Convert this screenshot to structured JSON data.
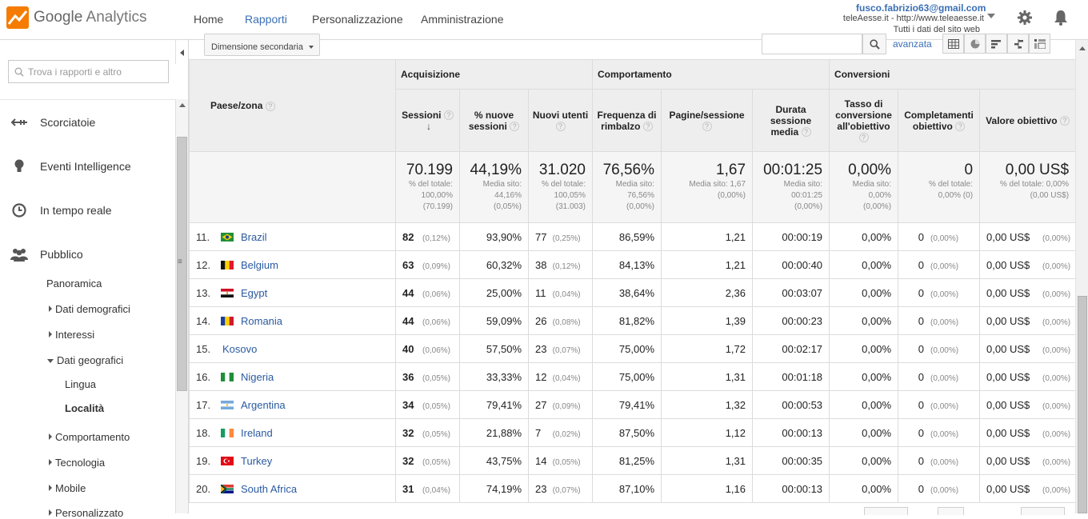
{
  "app": {
    "logo_brand": "Google",
    "logo_product": "Analytics",
    "brand_color": "#f57c00",
    "accent_color": "#3a6fb4"
  },
  "nav": {
    "tabs": [
      {
        "label": "Home",
        "active": false
      },
      {
        "label": "Rapporti",
        "active": true
      },
      {
        "label": "Personalizzazione",
        "active": false
      },
      {
        "label": "Amministrazione",
        "active": false
      }
    ]
  },
  "account": {
    "email": "fusco.fabrizio63@gmail.com",
    "property": "teleAesse.it - http://www.teleaesse.it",
    "view": "Tutti i dati del sito web"
  },
  "icons": {
    "settings": "gear-icon",
    "notifications": "bell-icon",
    "search": "search-icon"
  },
  "sidebar": {
    "search_placeholder": "Trova i rapporti e altro",
    "items": [
      {
        "label": "Scorciatoie",
        "icon": "shortcut-icon"
      },
      {
        "label": "Eventi Intelligence",
        "icon": "lightbulb-icon"
      },
      {
        "label": "In tempo reale",
        "icon": "clock-icon"
      },
      {
        "label": "Pubblico",
        "icon": "people-icon"
      }
    ],
    "pubblico_sub": [
      {
        "label": "Panoramica",
        "expander": "none"
      },
      {
        "label": "Dati demografici",
        "expander": "collapsed"
      },
      {
        "label": "Interessi",
        "expander": "collapsed"
      },
      {
        "label": "Dati geografici",
        "expander": "expanded"
      },
      {
        "label": "Lingua",
        "expander": "none"
      },
      {
        "label": "Località",
        "expander": "none",
        "selected": true
      },
      {
        "label": "Comportamento",
        "expander": "collapsed"
      },
      {
        "label": "Tecnologia",
        "expander": "collapsed"
      },
      {
        "label": "Mobile",
        "expander": "collapsed"
      },
      {
        "label": "Personalizzato",
        "expander": "collapsed"
      }
    ]
  },
  "toolbar": {
    "secondary_dimension": "Dimensione secondaria",
    "advanced_link": "avanzata"
  },
  "table": {
    "dimension_header": "Paese/zona",
    "groups": [
      "Acquisizione",
      "Comportamento",
      "Conversioni"
    ],
    "columns": [
      "Sessioni",
      "% nuove sessioni",
      "Nuovi utenti",
      "Frequenza di rimbalzo",
      "Pagine/sessione",
      "Durata sessione media",
      "Tasso di conversione all'obiettivo",
      "Completamenti obiettivo",
      "Valore obiettivo"
    ],
    "totals": [
      {
        "value": "70.199",
        "sub": "% del totale:\n100,00%\n(70.199)"
      },
      {
        "value": "44,19%",
        "sub": "Media sito:\n44,16%\n(0,05%)"
      },
      {
        "value": "31.020",
        "sub": "% del totale:\n100,05%\n(31.003)"
      },
      {
        "value": "76,56%",
        "sub": "Media sito:\n76,56%\n(0,00%)"
      },
      {
        "value": "1,67",
        "sub": "Media sito: 1,67\n(0,00%)"
      },
      {
        "value": "00:01:25",
        "sub": "Media sito:\n00:01:25\n(0,00%)"
      },
      {
        "value": "0,00%",
        "sub": "Media sito:\n0,00%\n(0,00%)"
      },
      {
        "value": "0",
        "sub": "% del totale:\n0,00% (0)"
      },
      {
        "value": "0,00 US$",
        "sub": "% del totale: 0,00%\n(0,00 US$)"
      }
    ],
    "rows": [
      {
        "rank": "11.",
        "country": "Brazil",
        "flag": "brazil-flag",
        "sessions": "82",
        "sessions_pct": "(0,12%)",
        "new_sessions": "93,90%",
        "new_users": "77",
        "new_users_pct": "(0,25%)",
        "bounce": "86,59%",
        "pages": "1,21",
        "duration": "00:00:19",
        "conv_rate": "0,00%",
        "completions": "0",
        "completions_pct": "(0,00%)",
        "goal_value": "0,00 US$",
        "goal_value_pct": "(0,00%)"
      },
      {
        "rank": "12.",
        "country": "Belgium",
        "flag": "belgium-flag",
        "sessions": "63",
        "sessions_pct": "(0,09%)",
        "new_sessions": "60,32%",
        "new_users": "38",
        "new_users_pct": "(0,12%)",
        "bounce": "84,13%",
        "pages": "1,21",
        "duration": "00:00:40",
        "conv_rate": "0,00%",
        "completions": "0",
        "completions_pct": "(0,00%)",
        "goal_value": "0,00 US$",
        "goal_value_pct": "(0,00%)"
      },
      {
        "rank": "13.",
        "country": "Egypt",
        "flag": "egypt-flag",
        "sessions": "44",
        "sessions_pct": "(0,06%)",
        "new_sessions": "25,00%",
        "new_users": "11",
        "new_users_pct": "(0,04%)",
        "bounce": "38,64%",
        "pages": "2,36",
        "duration": "00:03:07",
        "conv_rate": "0,00%",
        "completions": "0",
        "completions_pct": "(0,00%)",
        "goal_value": "0,00 US$",
        "goal_value_pct": "(0,00%)"
      },
      {
        "rank": "14.",
        "country": "Romania",
        "flag": "romania-flag",
        "sessions": "44",
        "sessions_pct": "(0,06%)",
        "new_sessions": "59,09%",
        "new_users": "26",
        "new_users_pct": "(0,08%)",
        "bounce": "81,82%",
        "pages": "1,39",
        "duration": "00:00:23",
        "conv_rate": "0,00%",
        "completions": "0",
        "completions_pct": "(0,00%)",
        "goal_value": "0,00 US$",
        "goal_value_pct": "(0,00%)"
      },
      {
        "rank": "15.",
        "country": "Kosovo",
        "flag": "",
        "sessions": "40",
        "sessions_pct": "(0,06%)",
        "new_sessions": "57,50%",
        "new_users": "23",
        "new_users_pct": "(0,07%)",
        "bounce": "75,00%",
        "pages": "1,72",
        "duration": "00:02:17",
        "conv_rate": "0,00%",
        "completions": "0",
        "completions_pct": "(0,00%)",
        "goal_value": "0,00 US$",
        "goal_value_pct": "(0,00%)"
      },
      {
        "rank": "16.",
        "country": "Nigeria",
        "flag": "nigeria-flag",
        "sessions": "36",
        "sessions_pct": "(0,05%)",
        "new_sessions": "33,33%",
        "new_users": "12",
        "new_users_pct": "(0,04%)",
        "bounce": "75,00%",
        "pages": "1,31",
        "duration": "00:01:18",
        "conv_rate": "0,00%",
        "completions": "0",
        "completions_pct": "(0,00%)",
        "goal_value": "0,00 US$",
        "goal_value_pct": "(0,00%)"
      },
      {
        "rank": "17.",
        "country": "Argentina",
        "flag": "argentina-flag",
        "sessions": "34",
        "sessions_pct": "(0,05%)",
        "new_sessions": "79,41%",
        "new_users": "27",
        "new_users_pct": "(0,09%)",
        "bounce": "79,41%",
        "pages": "1,32",
        "duration": "00:00:53",
        "conv_rate": "0,00%",
        "completions": "0",
        "completions_pct": "(0,00%)",
        "goal_value": "0,00 US$",
        "goal_value_pct": "(0,00%)"
      },
      {
        "rank": "18.",
        "country": "Ireland",
        "flag": "ireland-flag",
        "sessions": "32",
        "sessions_pct": "(0,05%)",
        "new_sessions": "21,88%",
        "new_users": "7",
        "new_users_pct": "(0,02%)",
        "bounce": "87,50%",
        "pages": "1,12",
        "duration": "00:00:13",
        "conv_rate": "0,00%",
        "completions": "0",
        "completions_pct": "(0,00%)",
        "goal_value": "0,00 US$",
        "goal_value_pct": "(0,00%)"
      },
      {
        "rank": "19.",
        "country": "Turkey",
        "flag": "turkey-flag",
        "sessions": "32",
        "sessions_pct": "(0,05%)",
        "new_sessions": "43,75%",
        "new_users": "14",
        "new_users_pct": "(0,05%)",
        "bounce": "81,25%",
        "pages": "1,31",
        "duration": "00:00:35",
        "conv_rate": "0,00%",
        "completions": "0",
        "completions_pct": "(0,00%)",
        "goal_value": "0,00 US$",
        "goal_value_pct": "(0,00%)"
      },
      {
        "rank": "20.",
        "country": "South Africa",
        "flag": "south-africa-flag",
        "sessions": "31",
        "sessions_pct": "(0,04%)",
        "new_sessions": "74,19%",
        "new_users": "23",
        "new_users_pct": "(0,07%)",
        "bounce": "87,10%",
        "pages": "1,16",
        "duration": "00:00:13",
        "conv_rate": "0,00%",
        "completions": "0",
        "completions_pct": "(0,00%)",
        "goal_value": "0,00 US$",
        "goal_value_pct": "(0,00%)"
      }
    ]
  }
}
